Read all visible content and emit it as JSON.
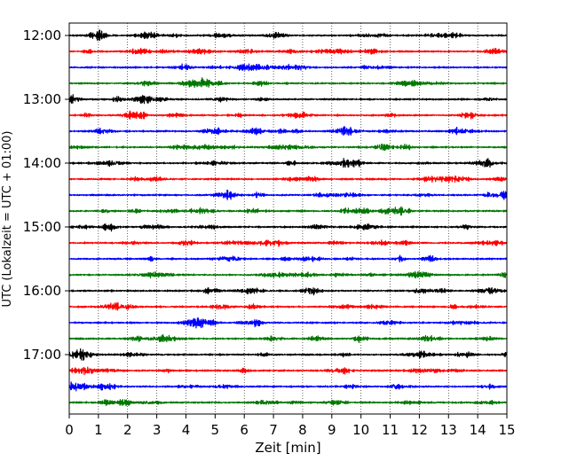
{
  "chart_data": {
    "type": "line",
    "title": "",
    "xlabel": "Zeit  [min]",
    "ylabel": "UTC (Lokalzeit = UTC + 01:00)",
    "xlim": [
      0,
      15
    ],
    "x_ticks": [
      "0",
      "1",
      "2",
      "3",
      "4",
      "5",
      "6",
      "7",
      "8",
      "9",
      "10",
      "11",
      "12",
      "13",
      "14",
      "15"
    ],
    "y_tick_labels": [
      "12:00",
      "13:00",
      "14:00",
      "15:00",
      "16:00",
      "17:00"
    ],
    "grid": "vertical dotted lines at every minute",
    "trace_interval_min": 15,
    "trace_color_cycle": [
      "#000000",
      "#ff0000",
      "#0000ff",
      "#007700"
    ],
    "series": [
      {
        "start": "12:00",
        "color": "#000000"
      },
      {
        "start": "12:15",
        "color": "#ff0000"
      },
      {
        "start": "12:30",
        "color": "#0000ff"
      },
      {
        "start": "12:45",
        "color": "#007700"
      },
      {
        "start": "13:00",
        "color": "#000000"
      },
      {
        "start": "13:15",
        "color": "#ff0000"
      },
      {
        "start": "13:30",
        "color": "#0000ff"
      },
      {
        "start": "13:45",
        "color": "#007700"
      },
      {
        "start": "14:00",
        "color": "#000000"
      },
      {
        "start": "14:15",
        "color": "#ff0000"
      },
      {
        "start": "14:30",
        "color": "#0000ff"
      },
      {
        "start": "14:45",
        "color": "#007700"
      },
      {
        "start": "15:00",
        "color": "#000000"
      },
      {
        "start": "15:15",
        "color": "#ff0000"
      },
      {
        "start": "15:30",
        "color": "#0000ff"
      },
      {
        "start": "15:45",
        "color": "#007700"
      },
      {
        "start": "16:00",
        "color": "#000000"
      },
      {
        "start": "16:15",
        "color": "#ff0000"
      },
      {
        "start": "16:30",
        "color": "#0000ff"
      },
      {
        "start": "16:45",
        "color": "#007700"
      },
      {
        "start": "17:00",
        "color": "#000000"
      },
      {
        "start": "17:15",
        "color": "#ff0000"
      },
      {
        "start": "17:30",
        "color": "#0000ff"
      },
      {
        "start": "17:45",
        "color": "#007700"
      }
    ]
  }
}
